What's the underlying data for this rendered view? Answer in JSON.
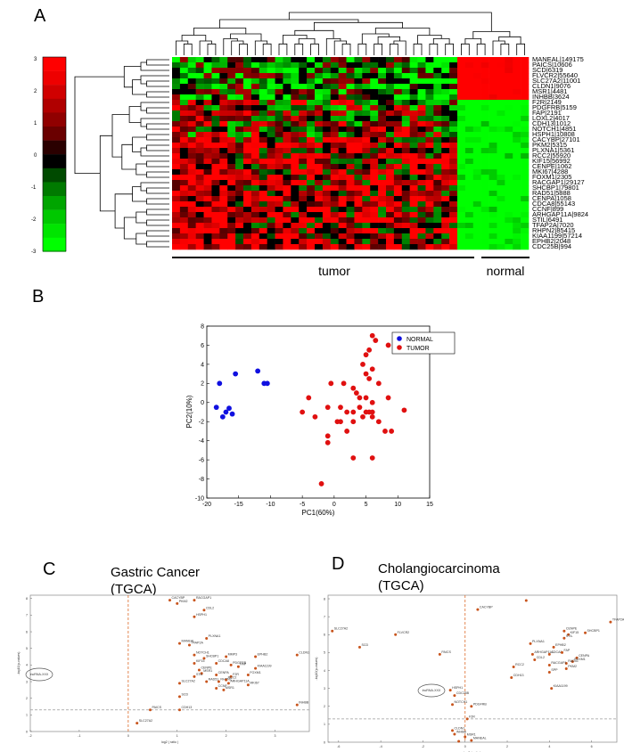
{
  "panels": {
    "A": "A",
    "B": "B",
    "C": "C",
    "D": "D"
  },
  "chart_data": [
    {
      "panel": "A",
      "type": "heatmap",
      "colorbar": {
        "ticks": [
          "3",
          "2",
          "1",
          "0",
          "-1",
          "-2",
          "-3"
        ],
        "high_color": "#ff0000",
        "mid_color": "#000000",
        "low_color": "#00ff00"
      },
      "genes": [
        "MANEAL|149175",
        "PAICS|10606",
        "SCD|6319",
        "FLVCR2|55640",
        "SLC27A2|11001",
        "CLDN1|9076",
        "MSR1|4481",
        "INHBB|3624",
        "F2R|2149",
        "PDGFRB|5159",
        "FAP|2191",
        "LOXL2|4017",
        "CDH13|1012",
        "NOTCH1|4851",
        "HSPH1|10808",
        "CACYBP|27101",
        "PKM2|5315",
        "PLXNA1|5361",
        "RCC2|55920",
        "KIF15|56992",
        "CENPE|1062",
        "MKI67|4288",
        "FOXM1|2305",
        "RACGAP1|29127",
        "SHCBP1|79801",
        "RAD51|5888",
        "CENPA|1058",
        "CDCA8|55143",
        "CCNF|899",
        "ARHGAP11A|9824",
        "STIL|6491",
        "TFAP2A|7020",
        "RHPN2|85415",
        "KIAA1199|57214",
        "EPHB2|2048",
        "CDC25B|994"
      ],
      "groups": [
        "tumor",
        "normal"
      ],
      "tumor_columns": 36,
      "normal_columns": 9
    },
    {
      "panel": "B",
      "type": "scatter",
      "xlabel": "PC1(60%)",
      "ylabel": "PC2(10%)",
      "xlim": [
        -20,
        15
      ],
      "ylim": [
        -10,
        8
      ],
      "xticks": [
        "-20",
        "-15",
        "-10",
        "-5",
        "0",
        "5",
        "10",
        "15"
      ],
      "yticks": [
        "8",
        "6",
        "4",
        "2",
        "0",
        "-2",
        "-4",
        "-6",
        "-8",
        "-10"
      ],
      "legend": "top-right",
      "series": [
        {
          "name": "NORMAL",
          "color": "#1010e0",
          "x": [
            -18,
            -15.5,
            -12,
            -11,
            -10.5,
            -16.5,
            -17,
            -16,
            -18.5,
            -17.5
          ],
          "y": [
            2,
            3,
            3.3,
            2,
            2,
            -0.6,
            -1,
            -1.2,
            -0.5,
            -1.5
          ]
        },
        {
          "name": "TUMOR",
          "color": "#e01010",
          "x": [
            6,
            6.5,
            5.5,
            8.5,
            5,
            6,
            4.5,
            5,
            5.5,
            3,
            1.5,
            -0.5,
            3.5,
            7,
            5,
            4,
            6,
            4,
            5,
            8.5,
            2,
            3,
            6,
            -4,
            -1,
            1,
            1,
            3,
            7,
            11,
            5.5,
            6,
            4.5,
            -5,
            -3,
            0.5,
            -1,
            -1,
            2,
            3,
            6,
            8,
            9,
            -2
          ],
          "y": [
            7,
            6.5,
            5.5,
            6,
            5,
            3.5,
            4,
            3,
            2.5,
            1.5,
            2,
            2,
            1,
            2,
            0.5,
            0.5,
            0,
            -0.5,
            -1,
            0.5,
            -1,
            -1,
            -1,
            0.5,
            -0.5,
            -0.5,
            -2,
            -2,
            -2,
            -0.8,
            -1,
            -1.5,
            -1.5,
            -1,
            -1.5,
            -2,
            -3.5,
            -4.2,
            -3,
            -5.8,
            -5.8,
            -3,
            -3,
            -8.5
          ]
        }
      ]
    },
    {
      "panel": "C",
      "type": "scatter",
      "title": "Gastric Cancer\n(TGCA)",
      "title_line1": "Gastric Cancer",
      "title_line2": "(TGCA)",
      "xlabel": "log2 ( ratio )",
      "ylabel": "-log10(p-values)",
      "xlim": [
        -2,
        3.7
      ],
      "ylim": [
        0,
        8.2
      ],
      "xticks": [
        "-2",
        "-1",
        "0",
        "1",
        "2",
        "3"
      ],
      "yticks": [
        "0",
        "1",
        "2",
        "3",
        "4",
        "5",
        "6",
        "7",
        "8"
      ],
      "vline_x": 0,
      "hline_y": 1.3,
      "highlight_label": "lncRNA-XXX",
      "points": [
        {
          "label": "SLC27A2",
          "x": 0.18,
          "y": 0.5
        },
        {
          "label": "CACYBP",
          "x": 0.85,
          "y": 7.9
        },
        {
          "label": "PKM2",
          "x": 1.0,
          "y": 7.7
        },
        {
          "label": "RACGAP1",
          "x": 1.35,
          "y": 7.9
        },
        {
          "label": "CDL2",
          "x": 1.55,
          "y": 7.3
        },
        {
          "label": "HSPH1",
          "x": 1.35,
          "y": 6.9
        },
        {
          "label": "PLXNA1",
          "x": 1.6,
          "y": 5.6
        },
        {
          "label": "TFAP2A",
          "x": 1.25,
          "y": 5.2
        },
        {
          "label": "MANEAL",
          "x": 1.05,
          "y": 5.3
        },
        {
          "label": "NOTCH1",
          "x": 1.35,
          "y": 4.6
        },
        {
          "label": "SHCBP1",
          "x": 1.55,
          "y": 4.4
        },
        {
          "label": "MMP3",
          "x": 2.0,
          "y": 4.5
        },
        {
          "label": "KIF15",
          "x": 1.35,
          "y": 4.1
        },
        {
          "label": "CDCA8",
          "x": 1.8,
          "y": 4.1
        },
        {
          "label": "PDGFRB",
          "x": 2.1,
          "y": 4.0
        },
        {
          "label": "FAP",
          "x": 2.25,
          "y": 3.9
        },
        {
          "label": "KIAA1199",
          "x": 2.6,
          "y": 3.8
        },
        {
          "label": "CENPE",
          "x": 1.45,
          "y": 3.7
        },
        {
          "label": "MSR1",
          "x": 1.5,
          "y": 3.5
        },
        {
          "label": "STIL",
          "x": 1.35,
          "y": 3.3
        },
        {
          "label": "CENPA",
          "x": 1.8,
          "y": 3.4
        },
        {
          "label": "F2R",
          "x": 2.1,
          "y": 3.3
        },
        {
          "label": "FOXM1",
          "x": 2.45,
          "y": 3.4
        },
        {
          "label": "RAD51",
          "x": 1.6,
          "y": 3.0
        },
        {
          "label": "RHPN2",
          "x": 1.85,
          "y": 3.0
        },
        {
          "label": "RCC2",
          "x": 2.0,
          "y": 3.1
        },
        {
          "label": "ARHGAP11A",
          "x": 2.05,
          "y": 2.9
        },
        {
          "label": "CCNF",
          "x": 1.8,
          "y": 2.6
        },
        {
          "label": "MSR1",
          "x": 1.95,
          "y": 2.5
        },
        {
          "label": "MKI67",
          "x": 2.45,
          "y": 2.8
        },
        {
          "label": "EPHB2",
          "x": 2.6,
          "y": 4.5
        },
        {
          "label": "CLDN1",
          "x": 3.45,
          "y": 4.6
        },
        {
          "label": "SLC27A2",
          "x": 1.05,
          "y": 2.9
        },
        {
          "label": "SCD",
          "x": 1.05,
          "y": 2.1
        },
        {
          "label": "INHBB",
          "x": 3.45,
          "y": 1.6
        },
        {
          "label": "PAICS",
          "x": 0.45,
          "y": 1.3
        },
        {
          "label": "CDH13",
          "x": 1.05,
          "y": 1.3
        }
      ]
    },
    {
      "panel": "D",
      "type": "scatter",
      "title": "Cholangiocarcinoma\n(TGCA)",
      "title_line1": "Cholangiocarcinoma",
      "title_line2": "(TGCA)",
      "xlabel": "log2 ( ratio )",
      "ylabel": "-log10(p-values)",
      "xlim": [
        -6.5,
        7.2
      ],
      "ylim": [
        0,
        8.2
      ],
      "xticks": [
        "-6",
        "-4",
        "-2",
        "0",
        "2",
        "4",
        "6"
      ],
      "yticks": [
        "0",
        "1",
        "2",
        "3",
        "4",
        "5",
        "6",
        "7",
        "8"
      ],
      "vline_x": 0,
      "hline_y": 1.3,
      "highlight_label": "lncRNA-XXX",
      "points": [
        {
          "label": "SLC27A2",
          "x": -6.3,
          "y": 6.2
        },
        {
          "label": "FLVCR2",
          "x": -3.3,
          "y": 6.0
        },
        {
          "label": "SCD",
          "x": -5.0,
          "y": 5.3
        },
        {
          "label": "PAICS",
          "x": -1.2,
          "y": 4.9
        },
        {
          "label": "CACYBP",
          "x": 0.6,
          "y": 7.4
        },
        {
          "label": "",
          "x": 2.9,
          "y": 7.9
        },
        {
          "label": "TFAP2A",
          "x": 6.9,
          "y": 6.7
        },
        {
          "label": "SHCBP1",
          "x": 5.7,
          "y": 6.1
        },
        {
          "label": "CENPE",
          "x": 4.7,
          "y": 6.2
        },
        {
          "label": "KIF15",
          "x": 4.9,
          "y": 6.0
        },
        {
          "label": "STIL",
          "x": 4.7,
          "y": 5.8
        },
        {
          "label": "PLXNA1",
          "x": 3.1,
          "y": 5.5
        },
        {
          "label": "EPHB2",
          "x": 4.2,
          "y": 5.3
        },
        {
          "label": "ARHGAP11A",
          "x": 3.2,
          "y": 4.9
        },
        {
          "label": "CDCA8",
          "x": 4.0,
          "y": 4.9
        },
        {
          "label": "FAP",
          "x": 4.6,
          "y": 5.0
        },
        {
          "label": "CENPA",
          "x": 5.3,
          "y": 4.7
        },
        {
          "label": "FOXM1",
          "x": 5.1,
          "y": 4.5
        },
        {
          "label": "RAD51",
          "x": 4.8,
          "y": 4.4
        },
        {
          "label": "CDL2",
          "x": 3.3,
          "y": 4.6
        },
        {
          "label": "RACGAP1",
          "x": 4.0,
          "y": 4.3
        },
        {
          "label": "PKM2",
          "x": 4.8,
          "y": 4.1
        },
        {
          "label": "RCC2",
          "x": 2.3,
          "y": 4.2
        },
        {
          "label": "CDH13",
          "x": 2.2,
          "y": 3.6
        },
        {
          "label": "SPP",
          "x": 4.0,
          "y": 3.9
        },
        {
          "label": "KIAA1199",
          "x": 4.1,
          "y": 3.0
        },
        {
          "label": "HSPH1",
          "x": -0.7,
          "y": 2.9
        },
        {
          "label": "CDC25B",
          "x": -0.5,
          "y": 2.6
        },
        {
          "label": "NOTCH1",
          "x": -0.6,
          "y": 2.1
        },
        {
          "label": "PDGFRB",
          "x": 0.3,
          "y": 2.0
        },
        {
          "label": "F2R",
          "x": 0.1,
          "y": 1.3
        },
        {
          "label": "CLDN1",
          "x": -0.6,
          "y": 0.65
        },
        {
          "label": "INHBB",
          "x": -0.5,
          "y": 0.45
        },
        {
          "label": "MSR1",
          "x": 0.0,
          "y": 0.3
        },
        {
          "label": "MANEAL",
          "x": 0.3,
          "y": 0.1
        },
        {
          "label": "",
          "x": -0.3,
          "y": 0.05
        }
      ]
    }
  ]
}
